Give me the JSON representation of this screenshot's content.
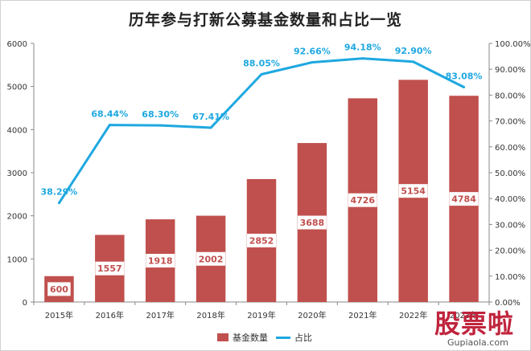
{
  "chart_data": {
    "type": "bar+line",
    "title": "历年参与打新公募基金数量和占比一览",
    "categories": [
      "2015年",
      "2016年",
      "2017年",
      "2018年",
      "2019年",
      "2020年",
      "2021年",
      "2022年",
      "2023年"
    ],
    "series": [
      {
        "name": "基金数量",
        "type": "bar",
        "axis": "left",
        "values": [
          600,
          1557,
          1918,
          2002,
          2852,
          3688,
          4726,
          5154,
          4784
        ],
        "labels": [
          "600",
          "1557",
          "1918",
          "2002",
          "2852",
          "3688",
          "4726",
          "5154",
          "4784"
        ]
      },
      {
        "name": "占比",
        "type": "line",
        "axis": "right",
        "values": [
          38.29,
          68.44,
          68.3,
          67.41,
          88.05,
          92.66,
          94.18,
          92.9,
          83.08
        ],
        "labels": [
          "38.29%",
          "68.44%",
          "68.30%",
          "67.41%",
          "88.05%",
          "92.66%",
          "94.18%",
          "92.90%",
          "83.08%"
        ]
      }
    ],
    "ylim_left": [
      0,
      6000
    ],
    "yticks_left": [
      "0",
      "1000",
      "2000",
      "3000",
      "4000",
      "5000",
      "6000"
    ],
    "ylim_right": [
      0,
      100
    ],
    "yticks_right": [
      "0.00%",
      "10.00%",
      "20.00%",
      "30.00%",
      "40.00%",
      "50.00%",
      "60.00%",
      "70.00%",
      "80.00%",
      "90.00%",
      "100.00%"
    ],
    "grid": false,
    "legend": "bottom",
    "colors": {
      "bar": "#c0504d",
      "line": "#1ea8e0",
      "line_label": "#1ea8e0"
    }
  },
  "watermark": {
    "logo": "股票啦",
    "url": "Gupiaola.com"
  }
}
